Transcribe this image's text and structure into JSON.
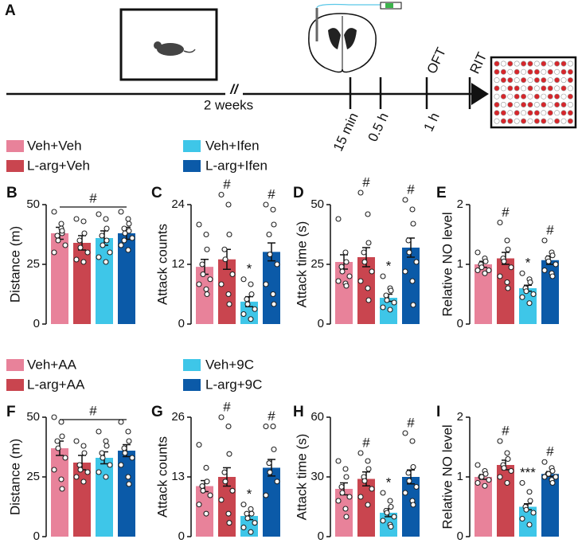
{
  "panel_a": {
    "label": "A",
    "break_mark": "//",
    "duration": "2 weeks",
    "times": [
      "15 min",
      "0.5 h",
      "1 h"
    ],
    "tests": [
      "OFT",
      "RIT"
    ]
  },
  "legends": [
    {
      "entries": [
        {
          "name": "Veh+Veh",
          "color": "#e8829a"
        },
        {
          "name": "L-arg+Veh",
          "color": "#c9454f"
        },
        {
          "name": "Veh+Ifen",
          "color": "#3ec6e8"
        },
        {
          "name": "L-arg+Ifen",
          "color": "#0b5aa8"
        }
      ]
    },
    {
      "entries": [
        {
          "name": "Veh+AA",
          "color": "#e8829a"
        },
        {
          "name": "L-arg+AA",
          "color": "#c9454f"
        },
        {
          "name": "Veh+9C",
          "color": "#3ec6e8"
        },
        {
          "name": "L-arg+9C",
          "color": "#0b5aa8"
        }
      ]
    }
  ],
  "chart_data": [
    {
      "type": "bar",
      "label": "B",
      "ylabel": "Distance (m)",
      "ylim": [
        0,
        50
      ],
      "yticks": [
        0,
        25,
        50
      ],
      "colors": [
        "#e8829a",
        "#c9454f",
        "#3ec6e8",
        "#0b5aa8"
      ],
      "values": [
        38,
        34,
        36,
        38
      ],
      "errors": [
        2.5,
        3,
        3,
        2.5
      ],
      "bracket_label": "#",
      "points": [
        [
          47,
          40,
          38,
          37,
          35,
          33,
          30,
          42,
          39
        ],
        [
          44,
          43,
          38,
          35,
          32,
          30,
          27,
          26
        ],
        [
          46,
          44,
          40,
          37,
          33,
          30,
          28,
          26,
          35
        ],
        [
          47,
          44,
          42,
          40,
          38,
          36,
          33,
          31,
          39,
          35
        ]
      ]
    },
    {
      "type": "bar",
      "label": "C",
      "ylabel": "Attack counts",
      "ylim": [
        0,
        24
      ],
      "yticks": [
        0,
        12,
        24
      ],
      "colors": [
        "#e8829a",
        "#c9454f",
        "#3ec6e8",
        "#0b5aa8"
      ],
      "values": [
        11.5,
        13,
        4.5,
        14.5
      ],
      "errors": [
        1.5,
        2,
        1,
        1.8
      ],
      "annotations": [
        null,
        "#",
        "*",
        "#"
      ],
      "points": [
        [
          20,
          18,
          15,
          12,
          10,
          9,
          8,
          7,
          6
        ],
        [
          26,
          24,
          18,
          15,
          13,
          10,
          8,
          6,
          4
        ],
        [
          9,
          8,
          6,
          5,
          4,
          3,
          2,
          1
        ],
        [
          24,
          23,
          20,
          18,
          14,
          12,
          8,
          6,
          4
        ]
      ]
    },
    {
      "type": "bar",
      "label": "D",
      "ylabel": "Attack time (s)",
      "ylim": [
        0,
        50
      ],
      "yticks": [
        0,
        25,
        50
      ],
      "colors": [
        "#e8829a",
        "#c9454f",
        "#3ec6e8",
        "#0b5aa8"
      ],
      "values": [
        26,
        28,
        11,
        32
      ],
      "errors": [
        3,
        4,
        1.5,
        4
      ],
      "annotations": [
        null,
        "#",
        "*",
        "#"
      ],
      "points": [
        [
          44,
          30,
          26,
          24,
          22,
          20,
          18,
          17,
          16
        ],
        [
          55,
          46,
          34,
          30,
          26,
          22,
          18,
          15,
          10
        ],
        [
          20,
          15,
          14,
          12,
          10,
          9,
          7,
          6
        ],
        [
          52,
          48,
          42,
          35,
          30,
          26,
          22,
          18,
          8
        ]
      ]
    },
    {
      "type": "bar",
      "label": "E",
      "ylabel": "Relative NO level",
      "ylim": [
        0,
        2
      ],
      "yticks": [
        0,
        1,
        2
      ],
      "colors": [
        "#e8829a",
        "#c9454f",
        "#3ec6e8",
        "#0b5aa8"
      ],
      "values": [
        1.0,
        1.1,
        0.6,
        1.07
      ],
      "errors": [
        0.05,
        0.1,
        0.05,
        0.07
      ],
      "annotations": [
        null,
        "#",
        "*",
        "#"
      ],
      "points": [
        [
          1.2,
          1.1,
          1.05,
          1.0,
          0.95,
          0.9,
          0.9,
          0.85
        ],
        [
          1.7,
          1.4,
          1.25,
          1.1,
          1.05,
          0.95,
          0.8,
          0.7,
          0.6
        ],
        [
          0.85,
          0.75,
          0.7,
          0.6,
          0.55,
          0.5,
          0.45,
          0.35
        ],
        [
          1.4,
          1.2,
          1.15,
          1.1,
          1.05,
          1.0,
          0.9,
          0.85,
          0.8
        ]
      ]
    },
    {
      "type": "bar",
      "label": "F",
      "ylabel": "Distance (m)",
      "ylim": [
        0,
        50
      ],
      "yticks": [
        0,
        25,
        50
      ],
      "colors": [
        "#e8829a",
        "#c9454f",
        "#3ec6e8",
        "#0b5aa8"
      ],
      "values": [
        37,
        31,
        33,
        36
      ],
      "errors": [
        3,
        3,
        2.5,
        2.5
      ],
      "bracket_label": "#",
      "points": [
        [
          50,
          48,
          42,
          40,
          37,
          33,
          28,
          24,
          20
        ],
        [
          40,
          38,
          35,
          30,
          28,
          27,
          25,
          23
        ],
        [
          44,
          40,
          38,
          35,
          33,
          30,
          27,
          25
        ],
        [
          48,
          44,
          40,
          37,
          35,
          33,
          30,
          25,
          22
        ]
      ]
    },
    {
      "type": "bar",
      "label": "G",
      "ylabel": "Attack counts",
      "ylim": [
        0,
        26
      ],
      "yticks": [
        0,
        13,
        26
      ],
      "colors": [
        "#e8829a",
        "#c9454f",
        "#3ec6e8",
        "#0b5aa8"
      ],
      "values": [
        11,
        13,
        4.5,
        15
      ],
      "errors": [
        1.2,
        2,
        0.8,
        1.8
      ],
      "annotations": [
        null,
        "#",
        "*",
        "#"
      ],
      "points": [
        [
          20,
          15,
          12,
          11,
          10,
          9,
          7,
          5
        ],
        [
          26,
          24,
          18,
          14,
          12,
          10,
          8,
          5,
          3
        ],
        [
          7,
          6,
          5,
          5,
          4,
          3,
          2,
          1
        ],
        [
          24,
          24,
          19,
          16,
          14,
          12,
          9
        ]
      ]
    },
    {
      "type": "bar",
      "label": "H",
      "ylabel": "Attack time (s)",
      "ylim": [
        0,
        60
      ],
      "yticks": [
        0,
        30,
        60
      ],
      "colors": [
        "#e8829a",
        "#c9454f",
        "#3ec6e8",
        "#0b5aa8"
      ],
      "values": [
        24,
        29,
        12,
        30
      ],
      "errors": [
        3,
        3.5,
        2,
        3.5
      ],
      "annotations": [
        null,
        "#",
        "*",
        "#"
      ],
      "points": [
        [
          38,
          34,
          30,
          25,
          22,
          20,
          18,
          14,
          10
        ],
        [
          42,
          38,
          34,
          30,
          28,
          24,
          20,
          16
        ],
        [
          22,
          18,
          15,
          13,
          12,
          10,
          8,
          6,
          5
        ],
        [
          52,
          48,
          35,
          32,
          28,
          25,
          22,
          18,
          16
        ]
      ]
    },
    {
      "type": "bar",
      "label": "I",
      "ylabel": "Relative NO level",
      "ylim": [
        0,
        2
      ],
      "yticks": [
        0,
        1,
        2
      ],
      "colors": [
        "#e8829a",
        "#c9454f",
        "#3ec6e8",
        "#0b5aa8"
      ],
      "values": [
        1.0,
        1.2,
        0.5,
        1.05
      ],
      "errors": [
        0.04,
        0.08,
        0.05,
        0.04
      ],
      "annotations": [
        null,
        "#",
        "***",
        "#"
      ],
      "points": [
        [
          1.2,
          1.1,
          1.05,
          1.0,
          1.0,
          0.95,
          0.9,
          0.85
        ],
        [
          1.6,
          1.4,
          1.3,
          1.2,
          1.15,
          1.1,
          1.0,
          0.9
        ],
        [
          0.9,
          0.75,
          0.6,
          0.5,
          0.45,
          0.4,
          0.3,
          0.2
        ],
        [
          1.25,
          1.15,
          1.1,
          1.05,
          1.05,
          1.0,
          1.0,
          0.95,
          0.9
        ]
      ]
    }
  ]
}
